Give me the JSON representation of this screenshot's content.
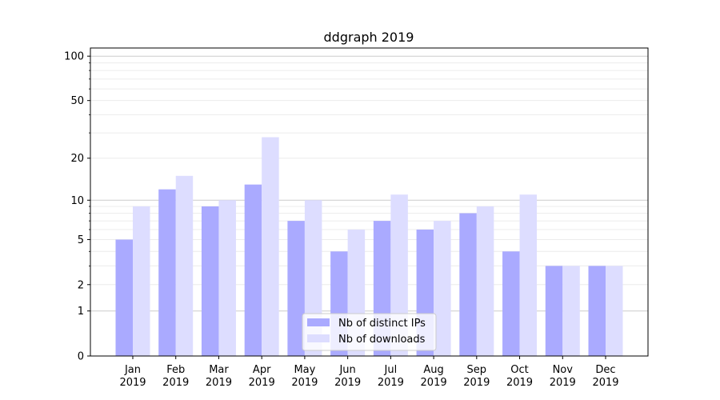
{
  "chart_data": {
    "type": "bar",
    "title": "ddgraph 2019",
    "xlabel": "",
    "ylabel": "",
    "yscale": "log10(1+y)",
    "ylim": [
      0,
      110
    ],
    "yticks": [
      0,
      1,
      2,
      5,
      10,
      20,
      50,
      100
    ],
    "categories": [
      "Jan\n2019",
      "Feb\n2019",
      "Mar\n2019",
      "Apr\n2019",
      "May\n2019",
      "Jun\n2019",
      "Jul\n2019",
      "Aug\n2019",
      "Sep\n2019",
      "Oct\n2019",
      "Nov\n2019",
      "Dec\n2019"
    ],
    "series": [
      {
        "name": "Nb of distinct IPs",
        "color": "#aaaaff",
        "values": [
          5,
          12,
          9,
          13,
          7,
          4,
          7,
          6,
          8,
          4,
          3,
          3
        ]
      },
      {
        "name": "Nb of downloads",
        "color": "#ddddff",
        "values": [
          9,
          15,
          10,
          28,
          10,
          6,
          11,
          7,
          9,
          11,
          3,
          3
        ]
      }
    ],
    "grid": true,
    "legend": "bottom-center"
  }
}
